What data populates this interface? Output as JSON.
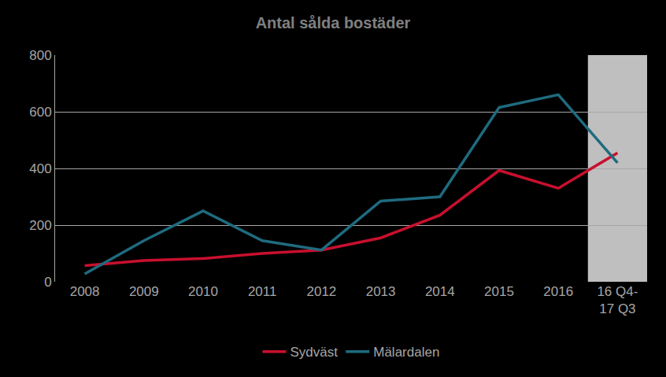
{
  "chart_data": {
    "type": "line",
    "title": "Antal sålda bostäder",
    "categories": [
      "2008",
      "2009",
      "2010",
      "2011",
      "2012",
      "2013",
      "2014",
      "2015",
      "2016",
      "16 Q4-\n17 Q3"
    ],
    "series": [
      {
        "name": "Sydväst",
        "color": "#c8102e",
        "values": [
          57,
          75,
          82,
          100,
          112,
          155,
          235,
          393,
          330,
          455
        ]
      },
      {
        "name": "Mälardalen",
        "color": "#1f6b7f",
        "values": [
          28,
          145,
          250,
          145,
          112,
          285,
          300,
          615,
          660,
          420
        ]
      }
    ],
    "ylim": [
      0,
      800
    ],
    "yticks": [
      0,
      200,
      400,
      600,
      800
    ],
    "grid": true,
    "legend": "bottom"
  }
}
